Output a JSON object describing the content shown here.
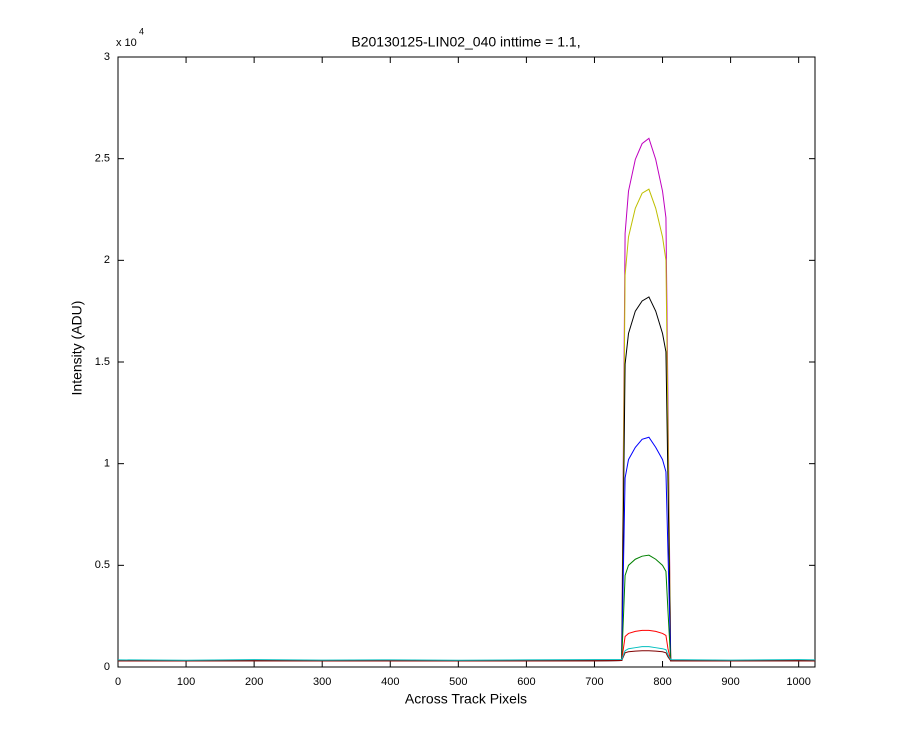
{
  "chart_data": {
    "type": "line",
    "title": "B20130125-LIN02_040 inttime = 1.1,",
    "x_label": "Across Track Pixels",
    "y_label": "Intensity (ADU)",
    "y_scale_label": "x 10",
    "y_scale_exponent": "4",
    "grid": false,
    "xlim": [
      0,
      1024
    ],
    "ylim": [
      0,
      30000
    ],
    "xticks": [
      0,
      100,
      200,
      300,
      400,
      500,
      600,
      700,
      800,
      900,
      1000
    ],
    "yticks": [
      0,
      {
        "value": 5000,
        "label": "0.5"
      },
      {
        "value": 10000,
        "label": "1"
      },
      {
        "value": 15000,
        "label": "1.5"
      },
      {
        "value": 20000,
        "label": "2"
      },
      {
        "value": 25000,
        "label": "2.5"
      },
      {
        "value": 30000,
        "label": "3"
      }
    ],
    "x": [
      0,
      100,
      200,
      300,
      400,
      500,
      600,
      700,
      740,
      745,
      750,
      760,
      770,
      780,
      790,
      800,
      805,
      808,
      812,
      850,
      900,
      1000,
      1024
    ],
    "series": [
      {
        "color": "#bf00bf",
        "values": [
          300,
          300,
          310,
          300,
          300,
          300,
          300,
          310,
          320,
          21320,
          23400,
          24960,
          25740,
          26000,
          24960,
          23400,
          22100,
          13000,
          310,
          300,
          300,
          310,
          300
        ]
      },
      {
        "color": "#bfbf00",
        "values": [
          300,
          300,
          310,
          300,
          300,
          300,
          300,
          310,
          320,
          19270,
          21150,
          22560,
          23300,
          23500,
          22560,
          21150,
          20000,
          11750,
          310,
          300,
          300,
          310,
          300
        ]
      },
      {
        "color": "#000000",
        "values": [
          300,
          300,
          310,
          300,
          300,
          300,
          300,
          310,
          320,
          14900,
          16400,
          17500,
          18000,
          18200,
          17500,
          16400,
          15500,
          9100,
          310,
          300,
          300,
          310,
          300
        ]
      },
      {
        "color": "#0000ff",
        "values": [
          300,
          300,
          310,
          300,
          300,
          300,
          300,
          310,
          320,
          9300,
          10200,
          10800,
          11200,
          11300,
          10800,
          10200,
          9600,
          5650,
          310,
          300,
          300,
          310,
          300
        ]
      },
      {
        "color": "#008000",
        "values": [
          300,
          300,
          310,
          300,
          300,
          300,
          300,
          310,
          320,
          4500,
          5000,
          5300,
          5450,
          5500,
          5300,
          5000,
          4700,
          2750,
          310,
          300,
          300,
          310,
          300
        ]
      },
      {
        "color": "#ff0000",
        "values": [
          300,
          300,
          310,
          300,
          300,
          300,
          300,
          310,
          320,
          1500,
          1650,
          1750,
          1800,
          1800,
          1750,
          1650,
          1550,
          900,
          310,
          300,
          300,
          310,
          300
        ]
      },
      {
        "color": "#800000",
        "values": [
          300,
          300,
          310,
          300,
          300,
          300,
          300,
          310,
          320,
          700,
          750,
          780,
          800,
          800,
          780,
          750,
          700,
          500,
          310,
          300,
          300,
          310,
          300
        ]
      },
      {
        "color": "#00bfbf",
        "values": [
          350,
          330,
          360,
          340,
          350,
          330,
          350,
          360,
          370,
          800,
          900,
          950,
          1000,
          1000,
          950,
          900,
          850,
          600,
          360,
          350,
          340,
          360,
          350
        ]
      }
    ]
  }
}
